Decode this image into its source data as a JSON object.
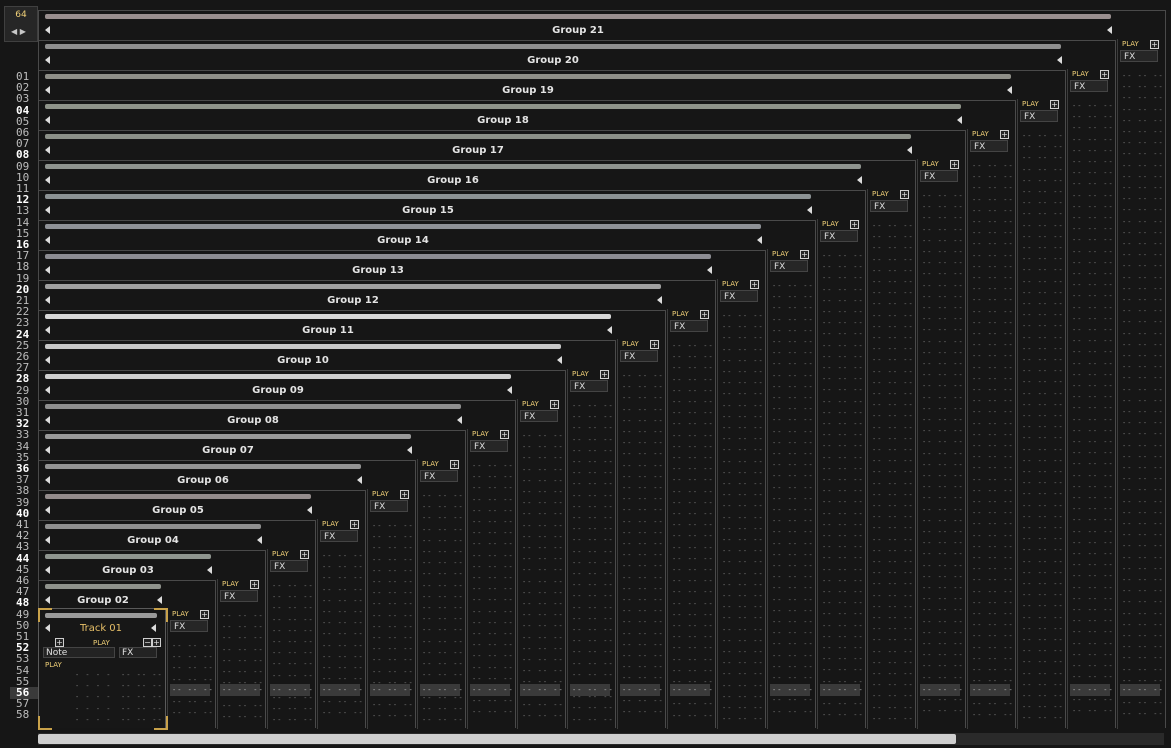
{
  "lines_per_beat": "64",
  "row_numbers": [
    "01",
    "02",
    "03",
    "04",
    "05",
    "06",
    "07",
    "08",
    "09",
    "10",
    "11",
    "12",
    "13",
    "14",
    "15",
    "16",
    "17",
    "18",
    "19",
    "20",
    "21",
    "22",
    "23",
    "24",
    "25",
    "26",
    "27",
    "28",
    "29",
    "30",
    "31",
    "32",
    "33",
    "34",
    "35",
    "36",
    "37",
    "38",
    "39",
    "40",
    "41",
    "42",
    "43",
    "44",
    "45",
    "46",
    "47",
    "48",
    "49",
    "50",
    "51",
    "52",
    "53",
    "54",
    "55",
    "56",
    "57",
    "58"
  ],
  "current_row": "56",
  "groups": [
    {
      "name": "Group 21",
      "color": "#9a8f8f",
      "play_label": "PLAY",
      "fx_label": "FX"
    },
    {
      "name": "Group 20",
      "color": "#8f8f8f",
      "play_label": "PLAY",
      "fx_label": "FX"
    },
    {
      "name": "Group 19",
      "color": "#8f8f88",
      "play_label": "PLAY",
      "fx_label": "FX"
    },
    {
      "name": "Group 18",
      "color": "#8f948a",
      "play_label": "PLAY",
      "fx_label": "FX"
    },
    {
      "name": "Group 17",
      "color": "#8c9088",
      "play_label": "PLAY",
      "fx_label": "FX"
    },
    {
      "name": "Group 16",
      "color": "#8f948f",
      "play_label": "PLAY",
      "fx_label": "FX"
    },
    {
      "name": "Group 15",
      "color": "#8c9294",
      "play_label": "PLAY",
      "fx_label": "FX"
    },
    {
      "name": "Group 14",
      "color": "#8e9196",
      "play_label": "PLAY",
      "fx_label": "FX"
    },
    {
      "name": "Group 13",
      "color": "#8d8d93",
      "play_label": "PLAY",
      "fx_label": "FX"
    },
    {
      "name": "Group 12",
      "color": "#a0a0a0",
      "play_label": "PLAY",
      "fx_label": "FX"
    },
    {
      "name": "Group 11",
      "color": "#d8d8d8",
      "play_label": "PLAY",
      "fx_label": "FX"
    },
    {
      "name": "Group 10",
      "color": "#c8c8c8",
      "play_label": "PLAY",
      "fx_label": "FX"
    },
    {
      "name": "Group 09",
      "color": "#cfcfcf",
      "play_label": "PLAY",
      "fx_label": "FX"
    },
    {
      "name": "Group 08",
      "color": "#8f8f8f",
      "play_label": "PLAY",
      "fx_label": "FX"
    },
    {
      "name": "Group 07",
      "color": "#9a9a9a",
      "play_label": "PLAY",
      "fx_label": "FX"
    },
    {
      "name": "Group 06",
      "color": "#949494",
      "play_label": "PLAY",
      "fx_label": "FX"
    },
    {
      "name": "Group 05",
      "color": "#948c8c",
      "play_label": "PLAY",
      "fx_label": "FX"
    },
    {
      "name": "Group 04",
      "color": "#909090",
      "play_label": "PLAY",
      "fx_label": "FX"
    },
    {
      "name": "Group 03",
      "color": "#8f958f",
      "play_label": "PLAY",
      "fx_label": "FX"
    },
    {
      "name": "Group 02",
      "color": "#8f928c",
      "play_label": "PLAY",
      "fx_label": "FX"
    }
  ],
  "track": {
    "name": "Track 01",
    "play_label": "PLAY",
    "note_label": "Note",
    "fx_label": "FX",
    "sub_play_label": "PLAY",
    "accent": "#e8c068"
  },
  "dot_pattern": "-- -- --",
  "track_dot_pattern": "- -  - -"
}
